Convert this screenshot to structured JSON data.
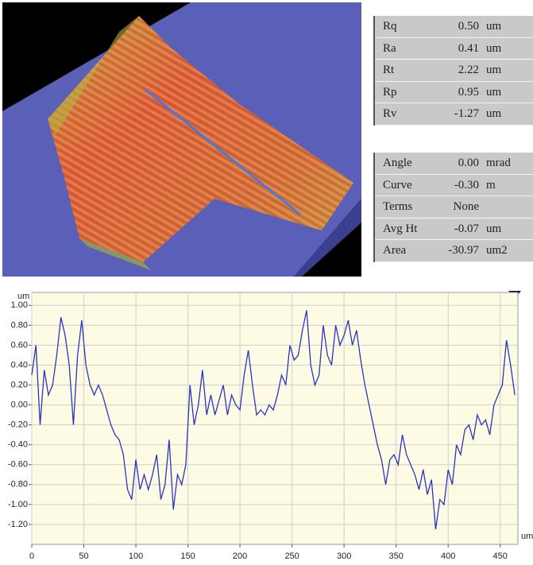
{
  "tables": [
    {
      "rows": [
        [
          "Rq",
          "0.50",
          "um"
        ],
        [
          "Ra",
          "0.41",
          "um"
        ],
        [
          "Rt",
          "2.22",
          "um"
        ],
        [
          "Rp",
          "0.95",
          "um"
        ],
        [
          "Rv",
          "-1.27",
          "um"
        ]
      ]
    },
    {
      "rows": [
        [
          "Angle",
          "0.00",
          "mrad"
        ],
        [
          "Curve",
          "-0.30",
          "m"
        ],
        [
          "Terms",
          "None",
          ""
        ],
        [
          "Avg Ht",
          "-0.07",
          "um"
        ],
        [
          "Area",
          "-30.97",
          "um2"
        ]
      ]
    }
  ],
  "chart_data": {
    "type": "line",
    "y_unit": "um",
    "x_unit": "um",
    "color": "#2a34c0",
    "grid": true,
    "xlim": [
      0,
      467
    ],
    "ylim": [
      -1.4,
      1.13
    ],
    "xticks": [
      0,
      50,
      100,
      150,
      200,
      250,
      300,
      350,
      400,
      450
    ],
    "yticks": [
      {
        "value": 1.0,
        "label": "1.00"
      },
      {
        "value": 0.8,
        "label": "0.80"
      },
      {
        "value": 0.6,
        "label": "0.60"
      },
      {
        "value": 0.4,
        "label": "0.40"
      },
      {
        "value": 0.2,
        "label": "0.20"
      },
      {
        "value": 0,
        "label": "0.00"
      },
      {
        "value": -0.2,
        "label": "-0.20"
      },
      {
        "value": -0.4,
        "label": "-0.40"
      },
      {
        "value": -0.6,
        "label": "-0.60"
      },
      {
        "value": -0.8,
        "label": "-0.80"
      },
      {
        "value": -1.0,
        "label": "-1.00"
      },
      {
        "value": -1.2,
        "label": "-1.20"
      }
    ],
    "x": [
      0,
      4,
      8,
      12,
      16,
      20,
      24,
      28,
      32,
      36,
      40,
      44,
      48,
      52,
      56,
      60,
      64,
      68,
      72,
      76,
      80,
      84,
      88,
      92,
      96,
      100,
      104,
      108,
      112,
      116,
      120,
      124,
      128,
      132,
      136,
      140,
      144,
      148,
      152,
      156,
      160,
      164,
      168,
      172,
      176,
      180,
      184,
      188,
      192,
      196,
      200,
      204,
      208,
      212,
      216,
      220,
      224,
      228,
      232,
      236,
      240,
      244,
      248,
      252,
      256,
      260,
      264,
      268,
      272,
      276,
      280,
      284,
      288,
      292,
      296,
      300,
      304,
      308,
      312,
      316,
      320,
      324,
      328,
      332,
      336,
      340,
      344,
      348,
      352,
      356,
      360,
      364,
      368,
      372,
      376,
      380,
      384,
      388,
      392,
      396,
      400,
      404,
      408,
      412,
      416,
      420,
      424,
      428,
      432,
      436,
      440,
      444,
      448,
      452,
      456,
      460,
      464
    ],
    "values": [
      0.3,
      0.6,
      -0.2,
      0.35,
      0.1,
      0.2,
      0.5,
      0.88,
      0.7,
      0.4,
      -0.2,
      0.5,
      0.85,
      0.4,
      0.2,
      0.1,
      0.2,
      0.1,
      -0.05,
      -0.2,
      -0.3,
      -0.35,
      -0.5,
      -0.85,
      -0.95,
      -0.55,
      -0.85,
      -0.7,
      -0.85,
      -0.7,
      -0.5,
      -0.95,
      -0.8,
      -0.35,
      -1.05,
      -0.7,
      -0.8,
      -0.6,
      0.2,
      -0.2,
      0.0,
      0.35,
      -0.1,
      0.1,
      -0.1,
      0.05,
      0.2,
      -0.1,
      0.1,
      0.0,
      -0.05,
      0.3,
      0.55,
      0.2,
      -0.1,
      -0.05,
      -0.1,
      0.0,
      -0.05,
      0.1,
      0.3,
      0.2,
      0.6,
      0.45,
      0.5,
      0.75,
      0.95,
      0.4,
      0.2,
      0.3,
      0.8,
      0.5,
      0.4,
      0.8,
      0.6,
      0.7,
      0.85,
      0.6,
      0.75,
      0.45,
      0.2,
      0.0,
      -0.2,
      -0.4,
      -0.55,
      -0.8,
      -0.55,
      -0.5,
      -0.6,
      -0.3,
      -0.5,
      -0.6,
      -0.7,
      -0.85,
      -0.65,
      -0.9,
      -0.75,
      -1.25,
      -0.95,
      -1.0,
      -0.65,
      -0.8,
      -0.4,
      -0.5,
      -0.25,
      -0.2,
      -0.35,
      -0.1,
      -0.2,
      -0.15,
      -0.3,
      0.0,
      0.1,
      0.2,
      0.65,
      0.4,
      0.1
    ]
  }
}
